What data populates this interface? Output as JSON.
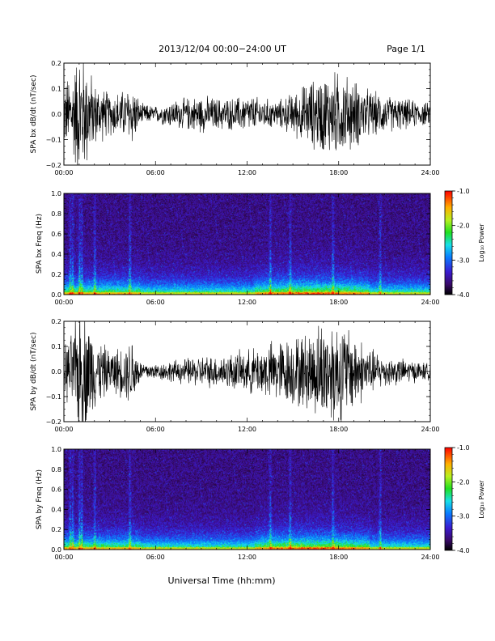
{
  "header": {
    "title": "2013/12/04  00:00−24:00 UT",
    "page": "Page 1/1"
  },
  "xaxis": {
    "label": "Universal Time (hh:mm)",
    "ticks": [
      "00:00",
      "06:00",
      "12:00",
      "18:00",
      "24:00"
    ],
    "range_hours": [
      0,
      24
    ]
  },
  "colorbar": {
    "label": "Log₁₀ Power",
    "ticks": [
      "-1.0",
      "-2.0",
      "-3.0",
      "-4.0"
    ],
    "range": [
      -4.0,
      -1.0
    ]
  },
  "chart_data": [
    {
      "type": "line",
      "ylabel": "SPA bx dB/dt (nT/sec)",
      "ylim": [
        -0.2,
        0.2
      ],
      "yticks": [
        "0.2",
        "0.1",
        "0.0",
        "−0.1",
        "−0.2"
      ],
      "amplitude_envelope": {
        "hours": [
          0,
          0.5,
          1,
          1.5,
          2,
          3,
          4,
          4.5,
          5,
          6,
          7,
          8,
          9,
          10,
          11,
          12,
          13,
          14,
          15,
          16,
          17,
          18,
          19,
          20,
          21,
          22,
          23,
          24
        ],
        "amplitude": [
          0.12,
          0.16,
          0.25,
          0.2,
          0.12,
          0.08,
          0.09,
          0.12,
          0.04,
          0.03,
          0.05,
          0.06,
          0.07,
          0.06,
          0.06,
          0.07,
          0.06,
          0.05,
          0.08,
          0.12,
          0.15,
          0.16,
          0.13,
          0.09,
          0.07,
          0.06,
          0.05,
          0.04
        ]
      }
    },
    {
      "type": "heatmap",
      "ylabel": "SPA bx Freq (Hz)",
      "ylim": [
        0.0,
        1.0
      ],
      "yticks": [
        "1.0",
        "0.8",
        "0.6",
        "0.4",
        "0.2",
        "0.0"
      ],
      "zlim": [
        -4.0,
        -1.0
      ]
    },
    {
      "type": "line",
      "ylabel": "SPA by dB/dt (nT/sec)",
      "ylim": [
        -0.2,
        0.2
      ],
      "yticks": [
        "0.2",
        "0.1",
        "0.0",
        "−0.1",
        "−0.2"
      ],
      "amplitude_envelope": {
        "hours": [
          0,
          0.5,
          1,
          1.5,
          2,
          3,
          4,
          4.5,
          5,
          6,
          7,
          8,
          9,
          10,
          11,
          12,
          13,
          14,
          15,
          16,
          17,
          18,
          19,
          20,
          21,
          22,
          23,
          24
        ],
        "amplitude": [
          0.1,
          0.14,
          0.25,
          0.22,
          0.14,
          0.08,
          0.1,
          0.14,
          0.04,
          0.03,
          0.04,
          0.05,
          0.06,
          0.06,
          0.07,
          0.08,
          0.1,
          0.12,
          0.13,
          0.15,
          0.2,
          0.2,
          0.15,
          0.09,
          0.06,
          0.05,
          0.04,
          0.03
        ]
      }
    },
    {
      "type": "heatmap",
      "ylabel": "SPA by Freq (Hz)",
      "ylim": [
        0.0,
        1.0
      ],
      "yticks": [
        "1.0",
        "0.8",
        "0.6",
        "0.4",
        "0.2",
        "0.0"
      ],
      "zlim": [
        -4.0,
        -1.0
      ]
    }
  ]
}
